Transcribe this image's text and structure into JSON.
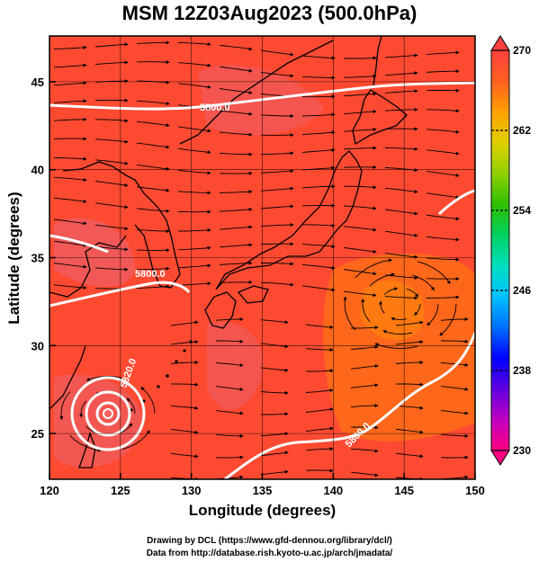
{
  "title": "MSM 12Z03Aug2023 (500.0hPa)",
  "axes": {
    "xlabel": "Longitude (degrees)",
    "ylabel": "Latitude  (degrees)",
    "x_ticks": [
      "120",
      "125",
      "130",
      "135",
      "140",
      "145",
      "150"
    ],
    "y_ticks": [
      "25",
      "30",
      "35",
      "40",
      "45"
    ],
    "xlim": [
      120,
      150
    ],
    "ylim": [
      22.4,
      47.6
    ]
  },
  "colorbar": {
    "min": 230,
    "max": 270,
    "tick_labels": [
      "270",
      "262",
      "254",
      "246",
      "238",
      "230"
    ],
    "colors": [
      "#ff0080",
      "#c000c0",
      "#6000e0",
      "#0000ff",
      "#0070ff",
      "#00c0ff",
      "#00e0c0",
      "#00d060",
      "#30c000",
      "#90d000",
      "#e0d000",
      "#ffa000",
      "#ff6020",
      "#ff4040"
    ]
  },
  "contours": [
    {
      "label": "5800.0"
    },
    {
      "label": "5800.0"
    },
    {
      "label": "5820.0"
    },
    {
      "label": "5800.0"
    }
  ],
  "credits": {
    "line1": "Drawing by DCL (https://www.gfd-dennou.org/library/dcl/)",
    "line2": "Data from http://database.rish.kyoto-u.ac.jp/arch/jmadata/"
  },
  "colors": {
    "field_warm": "#ff4a32",
    "field_orange": "#ff6c18",
    "field_pink": "#f05a5a",
    "contour": "#ffffff",
    "land": "#000000"
  }
}
